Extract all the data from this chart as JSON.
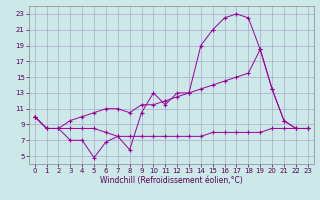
{
  "xlabel": "Windchill (Refroidissement éolien,°C)",
  "background_color": "#cce8e8",
  "grid_color": "#aaaacc",
  "line_color": "#990099",
  "xlim": [
    -0.5,
    23.5
  ],
  "ylim": [
    4,
    24
  ],
  "xticks": [
    0,
    1,
    2,
    3,
    4,
    5,
    6,
    7,
    8,
    9,
    10,
    11,
    12,
    13,
    14,
    15,
    16,
    17,
    18,
    19,
    20,
    21,
    22,
    23
  ],
  "yticks": [
    5,
    7,
    9,
    11,
    13,
    15,
    17,
    19,
    21,
    23
  ],
  "curve1_x": [
    0,
    1,
    2,
    3,
    4,
    5,
    6,
    7,
    8,
    9,
    10,
    11,
    12,
    13,
    14,
    15,
    16,
    17,
    18,
    19,
    20,
    21,
    22,
    23
  ],
  "curve1_y": [
    10.0,
    8.5,
    8.5,
    7.0,
    7.0,
    4.8,
    6.8,
    7.5,
    5.8,
    10.5,
    13.0,
    11.5,
    13.0,
    13.0,
    19.0,
    21.0,
    22.5,
    23.0,
    22.5,
    18.5,
    13.5,
    9.5,
    8.5,
    8.5
  ],
  "curve2_x": [
    0,
    1,
    2,
    3,
    4,
    5,
    6,
    7,
    8,
    9,
    10,
    11,
    12,
    13,
    14,
    15,
    16,
    17,
    18,
    19,
    20,
    21,
    22,
    23
  ],
  "curve2_y": [
    10.0,
    8.5,
    8.5,
    9.5,
    10.0,
    10.5,
    11.0,
    11.0,
    10.5,
    11.5,
    11.5,
    12.0,
    12.5,
    13.0,
    13.5,
    14.0,
    14.5,
    15.0,
    15.5,
    18.5,
    13.5,
    9.5,
    8.5,
    8.5
  ],
  "curve3_x": [
    0,
    1,
    2,
    3,
    4,
    5,
    6,
    7,
    8,
    9,
    10,
    11,
    12,
    13,
    14,
    15,
    16,
    17,
    18,
    19,
    20,
    21,
    22,
    23
  ],
  "curve3_y": [
    10.0,
    8.5,
    8.5,
    8.5,
    8.5,
    8.5,
    8.0,
    7.5,
    7.5,
    7.5,
    7.5,
    7.5,
    7.5,
    7.5,
    7.5,
    8.0,
    8.0,
    8.0,
    8.0,
    8.0,
    8.5,
    8.5,
    8.5,
    8.5
  ],
  "font_size_ticks": 5,
  "font_size_xlabel": 5.5,
  "tick_color": "#550055",
  "xlabel_color": "#550055"
}
